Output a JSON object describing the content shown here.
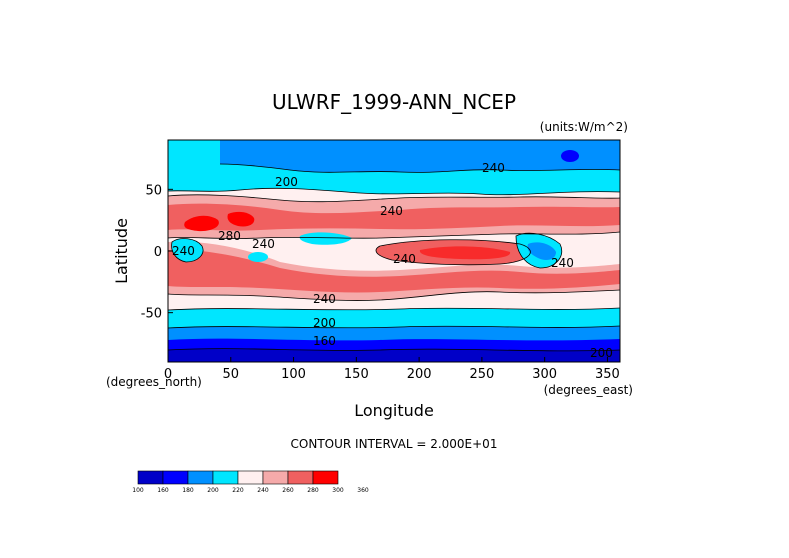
{
  "chart_data": {
    "type": "contour",
    "title": "ULWRF_1999-ANN_NCEP",
    "units_label": "(units:W/m^2)",
    "xlabel": "Longitude",
    "ylabel": "Latitude",
    "x_unit_note": "(degrees_east)",
    "y_unit_note": "(degrees_north)",
    "xlim": [
      0,
      360
    ],
    "ylim": [
      -90,
      90
    ],
    "x_ticks": [
      0,
      50,
      100,
      150,
      200,
      250,
      300,
      350
    ],
    "y_ticks": [
      -50,
      0,
      50
    ],
    "contour_interval_text": "CONTOUR INTERVAL = 2.000E+01",
    "contour_labels": [
      "240",
      "200",
      "240",
      "280",
      "240",
      "240",
      "240",
      "200",
      "160",
      "240",
      "240",
      "200"
    ],
    "colorbar": {
      "levels": [
        "100",
        "160",
        "180",
        "200",
        "220",
        "240",
        "260",
        "280",
        "300",
        "360"
      ],
      "colors": [
        "#0000c8",
        "#0000ff",
        "#0090ff",
        "#00e6ff",
        "#fff0f0",
        "#f5aaaa",
        "#f06060",
        "#ff0000"
      ]
    },
    "fill_colors": {
      "deep_blue": "#0000c8",
      "blue": "#0000ff",
      "sky": "#0090ff",
      "cyan": "#00e6ff",
      "cream": "#fff0f0",
      "pink": "#f5aaaa",
      "salmon": "#f06060",
      "red": "#ff0000"
    }
  }
}
